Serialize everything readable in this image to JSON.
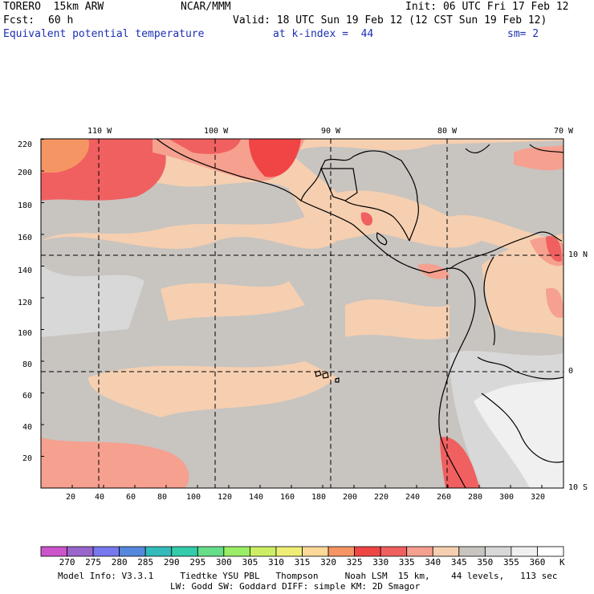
{
  "header": {
    "model": "TORERO  15km ARW",
    "center": "NCAR/MMM",
    "init": "Init: 06 UTC Fri 17 Feb 12",
    "fcst_label": "Fcst:",
    "fcst_value": "60 h",
    "valid": "Valid: 18 UTC Sun 19 Feb 12 (12 CST Sun 19 Feb 12)",
    "field": "Equivalent potential temperature",
    "level": "at k-index =  44",
    "smoothing": "sm= 2"
  },
  "map": {
    "lon_labels": [
      "110 W",
      "100 W",
      "90 W",
      "80 W",
      "70 W"
    ],
    "lat_labels": [
      "10 N",
      "0",
      "10 S"
    ],
    "left_axis": [
      "220",
      "200",
      "180",
      "160",
      "140",
      "120",
      "100",
      "80",
      "60",
      "40",
      "20"
    ],
    "bottom_axis": [
      "20",
      "40",
      "60",
      "80",
      "100",
      "120",
      "140",
      "160",
      "180",
      "200",
      "220",
      "240",
      "260",
      "280",
      "300",
      "320"
    ]
  },
  "colorbar": {
    "labels": [
      "270",
      "275",
      "280",
      "285",
      "290",
      "295",
      "300",
      "305",
      "310",
      "315",
      "320",
      "325",
      "330",
      "335",
      "340",
      "345",
      "350",
      "355",
      "360"
    ],
    "unit": "K",
    "colors": [
      "#cc55cc",
      "#9966cc",
      "#7777ee",
      "#5588dd",
      "#33bbbb",
      "#33ccaa",
      "#66dd88",
      "#99ee66",
      "#ccee66",
      "#eeee77",
      "#fcd998",
      "#f59563",
      "#f04545",
      "#f06060",
      "#f6a090",
      "#f5cfb0",
      "#c8c4c0",
      "#d8d8d8",
      "#f0f0f0"
    ]
  },
  "footer": {
    "line1": "Model Info: V3.3.1     Tiedtke YSU PBL   Thompson     Noah LSM  15 km,    44 levels,   113 sec",
    "line2": "LW: Godd SW: Goddard DIFF: simple KM: 2D Smagor"
  }
}
